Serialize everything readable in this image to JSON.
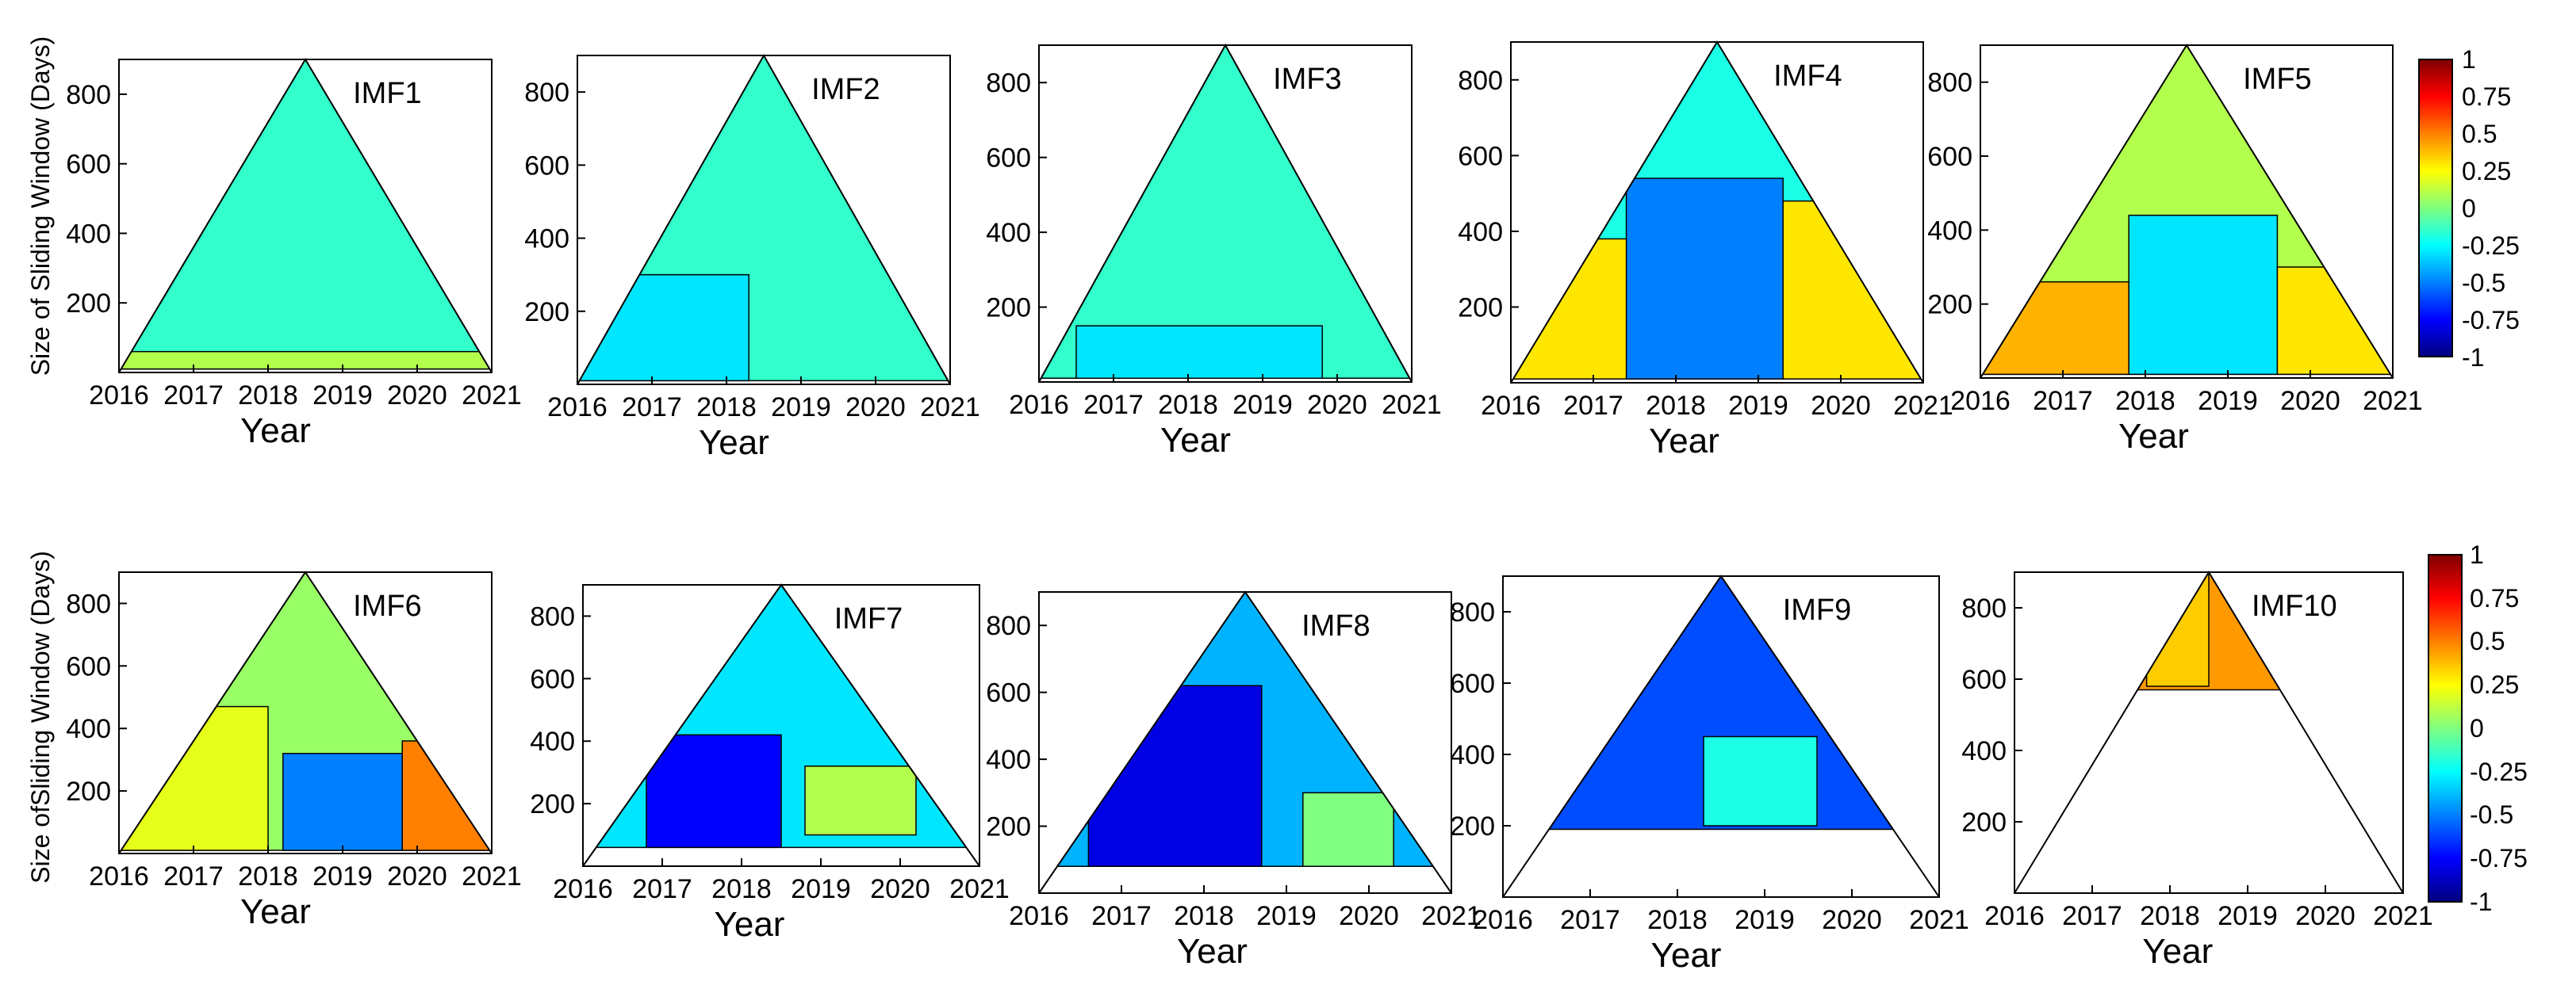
{
  "figure": {
    "y_axis_label_top": "Size of Sliding Window (Days)",
    "y_axis_label_bottom": "Size ofSliding Window (Days)",
    "colorbar_ticks": [
      "1",
      "0.75",
      "0.5",
      "0.25",
      "0",
      "-0.25",
      "-0.5",
      "-0.75",
      "-1"
    ],
    "colormap": [
      "#00007f",
      "#0000ff",
      "#0080ff",
      "#00ffff",
      "#80ff80",
      "#ffff00",
      "#ff8000",
      "#ff0000",
      "#7f0000"
    ]
  },
  "chart_data": [
    {
      "type": "heatmap",
      "title": "IMF1",
      "xlabel": "Year",
      "ylabel": "Size of Sliding Window (Days)",
      "x_ticks": [
        "2016",
        "2017",
        "2018",
        "2019",
        "2020",
        "2021"
      ],
      "y_ticks": [
        "200",
        "400",
        "600",
        "800"
      ],
      "xlim": [
        2016,
        2021
      ],
      "ylim": [
        0,
        900
      ],
      "apex_window": 900,
      "min_window": 10,
      "dominant_value": -0.15,
      "regions": [
        {
          "x": [
            2016,
            2021
          ],
          "window": [
            10,
            60
          ],
          "value": 0.1
        }
      ]
    },
    {
      "type": "heatmap",
      "title": "IMF2",
      "xlabel": "Year",
      "ylabel": "",
      "x_ticks": [
        "2016",
        "2017",
        "2018",
        "2019",
        "2020",
        "2021"
      ],
      "y_ticks": [
        "200",
        "400",
        "600",
        "800"
      ],
      "xlim": [
        2016,
        2021
      ],
      "ylim": [
        0,
        900
      ],
      "apex_window": 900,
      "min_window": 10,
      "dominant_value": -0.15,
      "regions": [
        {
          "x": [
            2016,
            2018.3
          ],
          "window": [
            10,
            300
          ],
          "value": -0.3
        }
      ]
    },
    {
      "type": "heatmap",
      "title": "IMF3",
      "xlabel": "Year",
      "ylabel": "",
      "x_ticks": [
        "2016",
        "2017",
        "2018",
        "2019",
        "2020",
        "2021"
      ],
      "y_ticks": [
        "200",
        "400",
        "600",
        "800"
      ],
      "xlim": [
        2016,
        2021
      ],
      "ylim": [
        0,
        900
      ],
      "apex_window": 900,
      "min_window": 10,
      "dominant_value": -0.15,
      "regions": [
        {
          "x": [
            2016.5,
            2019.8
          ],
          "window": [
            10,
            150
          ],
          "value": -0.3
        }
      ]
    },
    {
      "type": "heatmap",
      "title": "IMF4",
      "xlabel": "Year",
      "ylabel": "",
      "x_ticks": [
        "2016",
        "2017",
        "2018",
        "2019",
        "2020",
        "2021"
      ],
      "y_ticks": [
        "200",
        "400",
        "600",
        "800"
      ],
      "xlim": [
        2016,
        2021
      ],
      "ylim": [
        0,
        900
      ],
      "apex_window": 900,
      "min_window": 10,
      "dominant_value": -0.2,
      "regions": [
        {
          "x": [
            2016,
            2017.5
          ],
          "window": [
            10,
            380
          ],
          "value": 0.3
        },
        {
          "x": [
            2017.4,
            2019.3
          ],
          "window": [
            10,
            540
          ],
          "value": -0.5
        },
        {
          "x": [
            2019.3,
            2021
          ],
          "window": [
            10,
            480
          ],
          "value": 0.3
        }
      ]
    },
    {
      "type": "heatmap",
      "title": "IMF5",
      "xlabel": "Year",
      "ylabel": "",
      "x_ticks": [
        "2016",
        "2017",
        "2018",
        "2019",
        "2020",
        "2021"
      ],
      "y_ticks": [
        "200",
        "400",
        "600",
        "800"
      ],
      "xlim": [
        2016,
        2021
      ],
      "ylim": [
        0,
        900
      ],
      "apex_window": 900,
      "min_window": 10,
      "dominant_value": 0.1,
      "regions": [
        {
          "x": [
            2016,
            2017.8
          ],
          "window": [
            10,
            260
          ],
          "value": 0.4
        },
        {
          "x": [
            2017.8,
            2019.6
          ],
          "window": [
            10,
            440
          ],
          "value": -0.3
        },
        {
          "x": [
            2019.6,
            2021
          ],
          "window": [
            10,
            300
          ],
          "value": 0.3
        }
      ]
    },
    {
      "type": "heatmap",
      "title": "IMF6",
      "xlabel": "Year",
      "ylabel": "Size ofSliding Window (Days)",
      "x_ticks": [
        "2016",
        "2017",
        "2018",
        "2019",
        "2020",
        "2021"
      ],
      "y_ticks": [
        "200",
        "400",
        "600",
        "800"
      ],
      "xlim": [
        2016,
        2021
      ],
      "ylim": [
        0,
        900
      ],
      "apex_window": 900,
      "min_window": 10,
      "dominant_value": 0.05,
      "regions": [
        {
          "x": [
            2016,
            2018
          ],
          "window": [
            10,
            470
          ],
          "value": 0.2
        },
        {
          "x": [
            2018.2,
            2019.8
          ],
          "window": [
            10,
            320
          ],
          "value": -0.5
        },
        {
          "x": [
            2019.8,
            2021
          ],
          "window": [
            10,
            360
          ],
          "value": 0.5
        }
      ]
    },
    {
      "type": "heatmap",
      "title": "IMF7",
      "xlabel": "Year",
      "ylabel": "",
      "x_ticks": [
        "2016",
        "2017",
        "2018",
        "2019",
        "2020",
        "2021"
      ],
      "y_ticks": [
        "200",
        "400",
        "600",
        "800"
      ],
      "xlim": [
        2016,
        2021
      ],
      "ylim": [
        0,
        900
      ],
      "apex_window": 900,
      "min_window": 60,
      "dominant_value": -0.3,
      "regions": [
        {
          "x": [
            2016.8,
            2018.5
          ],
          "window": [
            60,
            420
          ],
          "value": -0.75
        },
        {
          "x": [
            2018.8,
            2020.2
          ],
          "window": [
            100,
            320
          ],
          "value": 0.1
        }
      ]
    },
    {
      "type": "heatmap",
      "title": "IMF8",
      "xlabel": "Year",
      "ylabel": "",
      "x_ticks": [
        "2016",
        "2017",
        "2018",
        "2019",
        "2020",
        "2021"
      ],
      "y_ticks": [
        "200",
        "400",
        "600",
        "800"
      ],
      "xlim": [
        2016,
        2021
      ],
      "ylim": [
        0,
        900
      ],
      "apex_window": 900,
      "min_window": 80,
      "dominant_value": -0.4,
      "regions": [
        {
          "x": [
            2016.6,
            2018.7
          ],
          "window": [
            80,
            620
          ],
          "value": -0.8
        },
        {
          "x": [
            2019.2,
            2020.3
          ],
          "window": [
            80,
            300
          ],
          "value": 0.0
        }
      ]
    },
    {
      "type": "heatmap",
      "title": "IMF9",
      "xlabel": "Year",
      "ylabel": "",
      "x_ticks": [
        "2016",
        "2017",
        "2018",
        "2019",
        "2020",
        "2021"
      ],
      "y_ticks": [
        "200",
        "400",
        "600",
        "800"
      ],
      "xlim": [
        2016,
        2021
      ],
      "ylim": [
        0,
        900
      ],
      "apex_window": 900,
      "min_window": 190,
      "dominant_value": -0.6,
      "regions": [
        {
          "x": [
            2018.3,
            2019.6
          ],
          "window": [
            200,
            450
          ],
          "value": -0.2
        }
      ]
    },
    {
      "type": "heatmap",
      "title": "IMF10",
      "xlabel": "Year",
      "ylabel": "",
      "x_ticks": [
        "2016",
        "2017",
        "2018",
        "2019",
        "2020",
        "2021"
      ],
      "y_ticks": [
        "200",
        "400",
        "600",
        "800"
      ],
      "xlim": [
        2016,
        2021
      ],
      "ylim": [
        0,
        900
      ],
      "apex_window": 900,
      "min_window": 570,
      "dominant_value": 0.45,
      "regions": [
        {
          "x": [
            2017.7,
            2018.5
          ],
          "window": [
            580,
            900
          ],
          "value": 0.35
        }
      ]
    }
  ]
}
